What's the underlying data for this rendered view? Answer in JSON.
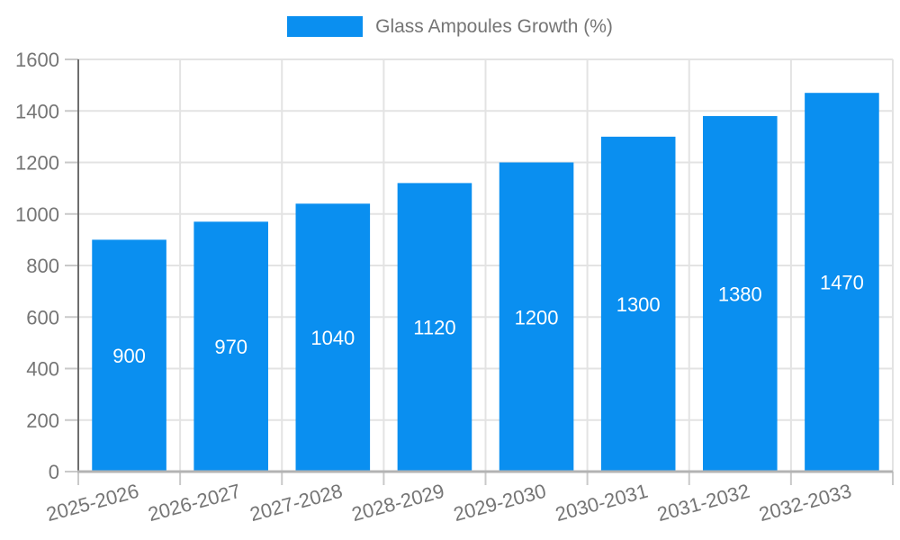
{
  "chart_data": {
    "type": "bar",
    "title": "Glass Ampoules Growth (%)",
    "categories": [
      "2025-2026",
      "2026-2027",
      "2027-2028",
      "2028-2029",
      "2029-2030",
      "2030-2031",
      "2031-2032",
      "2032-2033"
    ],
    "values": [
      900,
      970,
      1040,
      1120,
      1200,
      1300,
      1380,
      1470
    ],
    "value_labels": [
      "900",
      "970",
      "1040",
      "1120",
      "1200",
      "1300",
      "1380",
      "1470"
    ],
    "ylabel": "",
    "xlabel": "",
    "ylim": [
      0,
      1600
    ],
    "ytick_step": 200,
    "ytick_labels": [
      "0",
      "200",
      "400",
      "600",
      "800",
      "1000",
      "1200",
      "1400",
      "1600"
    ],
    "grid": true,
    "legend_position": "top",
    "x_label_rotation_deg": -15,
    "colors": {
      "bar": "#0a8ff0",
      "value_label": "#ffffff",
      "tick_label": "#757575",
      "legend_text": "#757575",
      "gridline": "#e3e3e3",
      "y_axis_line": "#6e6e6e",
      "x_axis_line": "#b3b3b3",
      "tick_mark": "#c9c9c9",
      "background": "#ffffff"
    }
  }
}
